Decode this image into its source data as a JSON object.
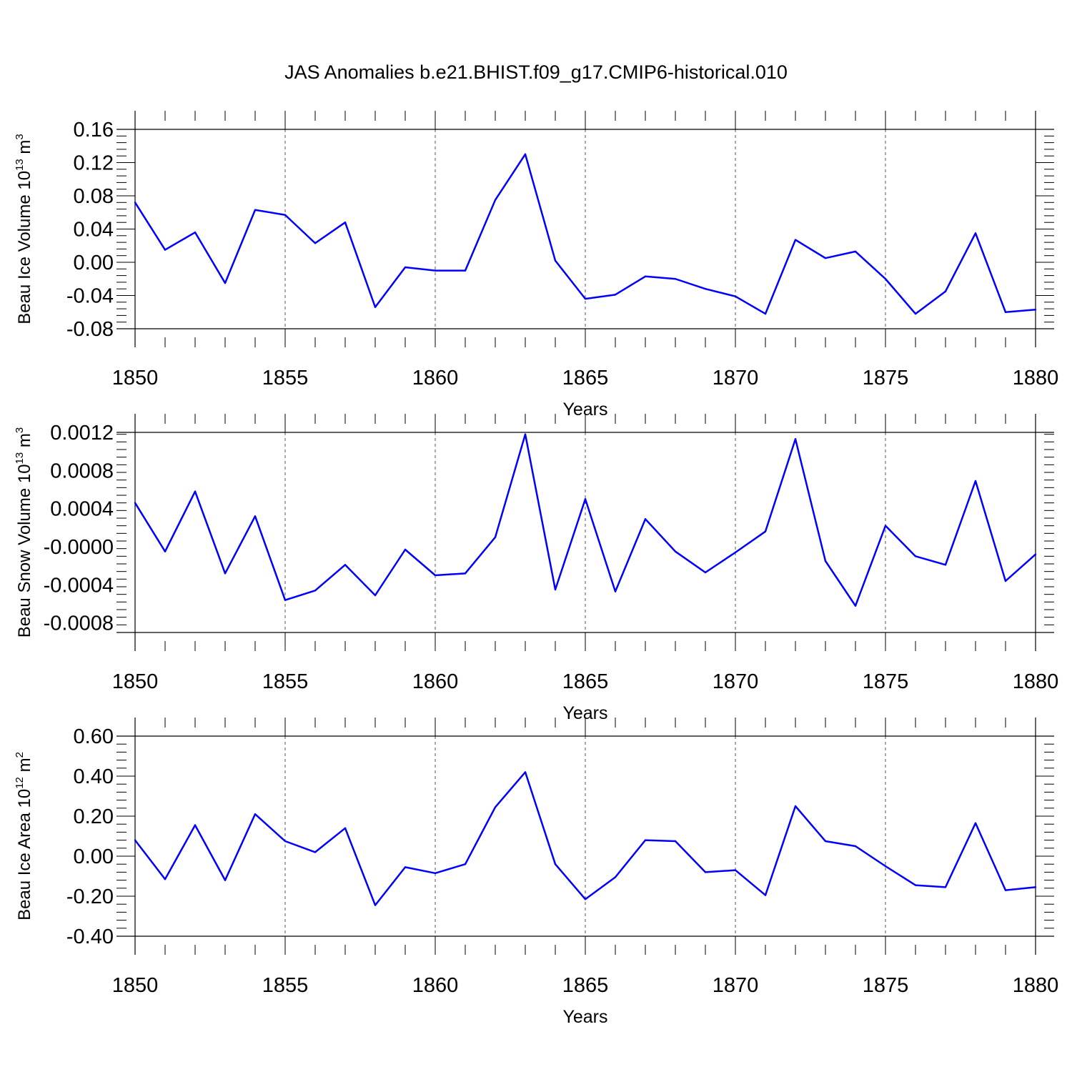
{
  "figure": {
    "title": "JAS Anomalies b.e21.BHIST.f09_g17.CMIP6-historical.010"
  },
  "colors": {
    "line": "#0000ff",
    "axis": "#000000",
    "grid": "#555555"
  },
  "chart_data": [
    {
      "type": "line",
      "id": "ice-volume",
      "title": "",
      "xlabel": "Years",
      "ylabel": "Beau Ice Volume 10",
      "ylabel_exp": "13",
      "ylabel_unit": " m",
      "ylabel_unit_exp": "3",
      "xlim": [
        1850,
        1880
      ],
      "ylim": [
        -0.08,
        0.16
      ],
      "xticks": [
        1850,
        1855,
        1860,
        1865,
        1870,
        1875,
        1880
      ],
      "xtick_labels": [
        "1850",
        "1855",
        "1860",
        "1865",
        "1870",
        "1875",
        "1880"
      ],
      "yticks": [
        -0.08,
        -0.04,
        0.0,
        0.04,
        0.08,
        0.12,
        0.16
      ],
      "ytick_labels": [
        "-0.08",
        "-0.04",
        "0.00",
        "0.04",
        "0.08",
        "0.12",
        "0.16"
      ],
      "grid": "vertical dashed at major x ticks",
      "series": [
        {
          "name": "Beau Ice Volume",
          "x": [
            1850,
            1851,
            1852,
            1853,
            1854,
            1855,
            1856,
            1857,
            1858,
            1859,
            1860,
            1861,
            1862,
            1863,
            1864,
            1865,
            1866,
            1867,
            1868,
            1869,
            1870,
            1871,
            1872,
            1873,
            1874,
            1875,
            1876,
            1877,
            1878,
            1879,
            1880
          ],
          "values": [
            0.072,
            0.015,
            0.036,
            -0.025,
            0.063,
            0.057,
            0.023,
            0.048,
            -0.054,
            -0.006,
            -0.01,
            -0.01,
            0.075,
            0.13,
            0.002,
            -0.044,
            -0.039,
            -0.017,
            -0.02,
            -0.032,
            -0.041,
            -0.062,
            0.027,
            0.005,
            0.013,
            -0.02,
            -0.062,
            -0.035,
            0.035,
            -0.06,
            -0.057
          ]
        }
      ]
    },
    {
      "type": "line",
      "id": "snow-volume",
      "title": "",
      "xlabel": "Years",
      "ylabel": "Beau Snow Volume 10",
      "ylabel_exp": "13",
      "ylabel_unit": " m",
      "ylabel_unit_exp": "3",
      "xlim": [
        1850,
        1880
      ],
      "ylim": [
        -0.0009,
        0.0012
      ],
      "xticks": [
        1850,
        1855,
        1860,
        1865,
        1870,
        1875,
        1880
      ],
      "xtick_labels": [
        "1850",
        "1855",
        "1860",
        "1865",
        "1870",
        "1875",
        "1880"
      ],
      "yticks": [
        -0.0008,
        -0.0004,
        0.0,
        0.0004,
        0.0008,
        0.0012
      ],
      "ytick_labels": [
        "-0.0008",
        "-0.0004",
        "-0.0000",
        "0.0004",
        "0.0008",
        "0.0012"
      ],
      "grid": "vertical dashed at major x ticks",
      "series": [
        {
          "name": "Beau Snow Volume",
          "x": [
            1850,
            1851,
            1852,
            1853,
            1854,
            1855,
            1856,
            1857,
            1858,
            1859,
            1860,
            1861,
            1862,
            1863,
            1864,
            1865,
            1866,
            1867,
            1868,
            1869,
            1870,
            1871,
            1872,
            1873,
            1874,
            1875,
            1876,
            1877,
            1878,
            1879,
            1880
          ],
          "values": [
            0.00046,
            -5e-05,
            0.00058,
            -0.00028,
            0.00032,
            -0.00056,
            -0.00046,
            -0.00019,
            -0.00051,
            -3e-05,
            -0.0003,
            -0.00028,
            0.0001,
            0.00118,
            -0.00045,
            0.0005,
            -0.00047,
            0.00029,
            -5e-05,
            -0.00027,
            -6e-05,
            0.00016,
            0.00113,
            -0.00015,
            -0.00062,
            0.00022,
            -0.0001,
            -0.00019,
            0.00069,
            -0.00036,
            -8e-05
          ]
        }
      ]
    },
    {
      "type": "line",
      "id": "ice-area",
      "title": "",
      "xlabel": "Years",
      "ylabel": "Beau Ice Area 10",
      "ylabel_exp": "12",
      "ylabel_unit": " m",
      "ylabel_unit_exp": "2",
      "xlim": [
        1850,
        1880
      ],
      "ylim": [
        -0.4,
        0.6
      ],
      "xticks": [
        1850,
        1855,
        1860,
        1865,
        1870,
        1875,
        1880
      ],
      "xtick_labels": [
        "1850",
        "1855",
        "1860",
        "1865",
        "1870",
        "1875",
        "1880"
      ],
      "yticks": [
        -0.4,
        -0.2,
        0.0,
        0.2,
        0.4,
        0.6
      ],
      "ytick_labels": [
        "-0.40",
        "-0.20",
        "0.00",
        "0.20",
        "0.40",
        "0.60"
      ],
      "grid": "vertical dashed at major x ticks",
      "series": [
        {
          "name": "Beau Ice Area",
          "x": [
            1850,
            1851,
            1852,
            1853,
            1854,
            1855,
            1856,
            1857,
            1858,
            1859,
            1860,
            1861,
            1862,
            1863,
            1864,
            1865,
            1866,
            1867,
            1868,
            1869,
            1870,
            1871,
            1872,
            1873,
            1874,
            1875,
            1876,
            1877,
            1878,
            1879,
            1880
          ],
          "values": [
            0.08,
            -0.115,
            0.155,
            -0.12,
            0.21,
            0.075,
            0.02,
            0.14,
            -0.245,
            -0.055,
            -0.085,
            -0.04,
            0.245,
            0.42,
            -0.04,
            -0.215,
            -0.105,
            0.08,
            0.075,
            -0.08,
            -0.07,
            -0.195,
            0.25,
            0.075,
            0.05,
            -0.05,
            -0.145,
            -0.155,
            0.165,
            -0.17,
            -0.155
          ]
        }
      ]
    }
  ]
}
